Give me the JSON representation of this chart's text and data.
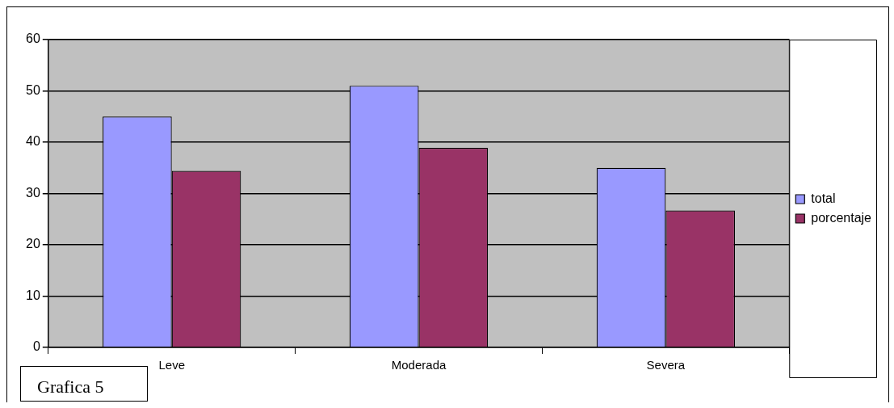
{
  "chart_data": {
    "type": "bar",
    "categories": [
      "Leve",
      "Moderada",
      "Severa"
    ],
    "series": [
      {
        "name": "total",
        "color": "#9999ff",
        "values": [
          45,
          51,
          35
        ]
      },
      {
        "name": "porcentaje",
        "color": "#993366",
        "values": [
          34.4,
          38.9,
          26.7
        ]
      }
    ],
    "ylim": [
      0,
      60
    ],
    "yticks": [
      0,
      10,
      20,
      30,
      40,
      50,
      60
    ],
    "grid": "y",
    "legend": "right",
    "annotations": [
      "Grafica 5"
    ]
  }
}
